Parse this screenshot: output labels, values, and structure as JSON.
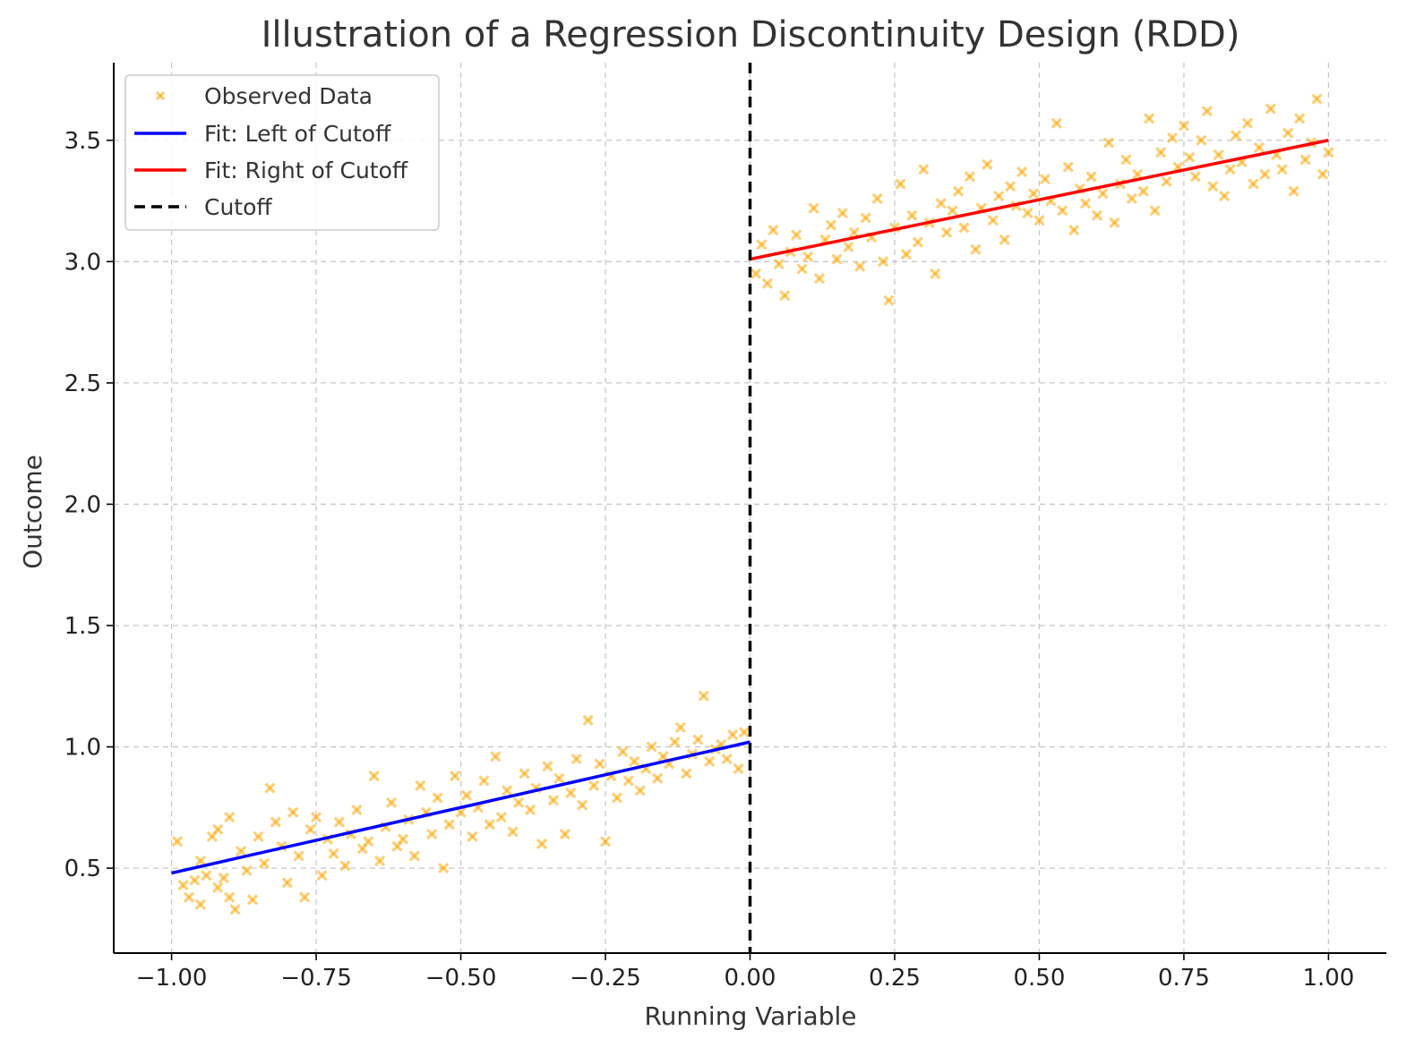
{
  "chart_data": {
    "type": "scatter",
    "title": "Illustration of a Regression Discontinuity Design (RDD)",
    "xlabel": "Running Variable",
    "ylabel": "Outcome",
    "xlim": [
      -1.1,
      1.1
    ],
    "ylim": [
      0.15,
      3.82
    ],
    "xticks": [
      -1.0,
      -0.75,
      -0.5,
      -0.25,
      0.0,
      0.25,
      0.5,
      0.75,
      1.0
    ],
    "xtick_labels": [
      "−1.00",
      "−0.75",
      "−0.50",
      "−0.25",
      "0.00",
      "0.25",
      "0.50",
      "0.75",
      "1.00"
    ],
    "yticks": [
      0.5,
      1.0,
      1.5,
      2.0,
      2.5,
      3.0,
      3.5
    ],
    "ytick_labels": [
      "0.5",
      "1.0",
      "1.5",
      "2.0",
      "2.5",
      "3.0",
      "3.5"
    ],
    "grid": true,
    "legend_position": "top-left",
    "cutoff": 0.0,
    "series": [
      {
        "name": "Observed Data",
        "kind": "scatter",
        "marker": "x",
        "color": "#FFA500",
        "points": [
          [
            -0.99,
            0.61
          ],
          [
            -0.98,
            0.43
          ],
          [
            -0.97,
            0.38
          ],
          [
            -0.96,
            0.45
          ],
          [
            -0.95,
            0.53
          ],
          [
            -0.95,
            0.35
          ],
          [
            -0.94,
            0.47
          ],
          [
            -0.93,
            0.63
          ],
          [
            -0.92,
            0.42
          ],
          [
            -0.92,
            0.66
          ],
          [
            -0.91,
            0.46
          ],
          [
            -0.9,
            0.38
          ],
          [
            -0.9,
            0.71
          ],
          [
            -0.89,
            0.33
          ],
          [
            -0.88,
            0.57
          ],
          [
            -0.87,
            0.49
          ],
          [
            -0.86,
            0.37
          ],
          [
            -0.85,
            0.63
          ],
          [
            -0.84,
            0.52
          ],
          [
            -0.83,
            0.83
          ],
          [
            -0.82,
            0.69
          ],
          [
            -0.81,
            0.59
          ],
          [
            -0.8,
            0.44
          ],
          [
            -0.79,
            0.73
          ],
          [
            -0.78,
            0.55
          ],
          [
            -0.77,
            0.38
          ],
          [
            -0.76,
            0.66
          ],
          [
            -0.75,
            0.71
          ],
          [
            -0.74,
            0.47
          ],
          [
            -0.73,
            0.62
          ],
          [
            -0.72,
            0.56
          ],
          [
            -0.71,
            0.69
          ],
          [
            -0.7,
            0.51
          ],
          [
            -0.69,
            0.64
          ],
          [
            -0.68,
            0.74
          ],
          [
            -0.67,
            0.58
          ],
          [
            -0.66,
            0.61
          ],
          [
            -0.65,
            0.88
          ],
          [
            -0.64,
            0.53
          ],
          [
            -0.63,
            0.67
          ],
          [
            -0.62,
            0.77
          ],
          [
            -0.61,
            0.59
          ],
          [
            -0.6,
            0.62
          ],
          [
            -0.59,
            0.7
          ],
          [
            -0.58,
            0.55
          ],
          [
            -0.57,
            0.84
          ],
          [
            -0.56,
            0.73
          ],
          [
            -0.55,
            0.64
          ],
          [
            -0.54,
            0.79
          ],
          [
            -0.53,
            0.5
          ],
          [
            -0.52,
            0.68
          ],
          [
            -0.51,
            0.88
          ],
          [
            -0.5,
            0.73
          ],
          [
            -0.49,
            0.8
          ],
          [
            -0.48,
            0.63
          ],
          [
            -0.47,
            0.75
          ],
          [
            -0.46,
            0.86
          ],
          [
            -0.45,
            0.68
          ],
          [
            -0.44,
            0.96
          ],
          [
            -0.43,
            0.71
          ],
          [
            -0.42,
            0.82
          ],
          [
            -0.41,
            0.65
          ],
          [
            -0.4,
            0.77
          ],
          [
            -0.39,
            0.89
          ],
          [
            -0.38,
            0.74
          ],
          [
            -0.37,
            0.83
          ],
          [
            -0.36,
            0.6
          ],
          [
            -0.35,
            0.92
          ],
          [
            -0.34,
            0.78
          ],
          [
            -0.33,
            0.87
          ],
          [
            -0.32,
            0.64
          ],
          [
            -0.31,
            0.81
          ],
          [
            -0.3,
            0.95
          ],
          [
            -0.29,
            0.76
          ],
          [
            -0.28,
            1.11
          ],
          [
            -0.27,
            0.84
          ],
          [
            -0.26,
            0.93
          ],
          [
            -0.25,
            0.61
          ],
          [
            -0.24,
            0.88
          ],
          [
            -0.23,
            0.79
          ],
          [
            -0.22,
            0.98
          ],
          [
            -0.21,
            0.86
          ],
          [
            -0.2,
            0.94
          ],
          [
            -0.19,
            0.82
          ],
          [
            -0.18,
            0.91
          ],
          [
            -0.17,
            1.0
          ],
          [
            -0.16,
            0.87
          ],
          [
            -0.15,
            0.96
          ],
          [
            -0.14,
            0.93
          ],
          [
            -0.13,
            1.02
          ],
          [
            -0.12,
            1.08
          ],
          [
            -0.11,
            0.89
          ],
          [
            -0.1,
            0.97
          ],
          [
            -0.09,
            1.03
          ],
          [
            -0.08,
            1.21
          ],
          [
            -0.07,
            0.94
          ],
          [
            -0.06,
            0.99
          ],
          [
            -0.05,
            1.01
          ],
          [
            -0.04,
            0.95
          ],
          [
            -0.03,
            1.05
          ],
          [
            -0.02,
            0.91
          ],
          [
            -0.01,
            1.06
          ],
          [
            0.01,
            2.95
          ],
          [
            0.02,
            3.07
          ],
          [
            0.03,
            2.91
          ],
          [
            0.04,
            3.13
          ],
          [
            0.05,
            2.99
          ],
          [
            0.06,
            2.86
          ],
          [
            0.07,
            3.04
          ],
          [
            0.08,
            3.11
          ],
          [
            0.09,
            2.97
          ],
          [
            0.1,
            3.02
          ],
          [
            0.11,
            3.22
          ],
          [
            0.12,
            2.93
          ],
          [
            0.13,
            3.09
          ],
          [
            0.14,
            3.15
          ],
          [
            0.15,
            3.01
          ],
          [
            0.16,
            3.2
          ],
          [
            0.17,
            3.06
          ],
          [
            0.18,
            3.12
          ],
          [
            0.19,
            2.98
          ],
          [
            0.2,
            3.18
          ],
          [
            0.21,
            3.1
          ],
          [
            0.22,
            3.26
          ],
          [
            0.23,
            3.0
          ],
          [
            0.24,
            2.84
          ],
          [
            0.25,
            3.14
          ],
          [
            0.26,
            3.32
          ],
          [
            0.27,
            3.03
          ],
          [
            0.28,
            3.19
          ],
          [
            0.29,
            3.08
          ],
          [
            0.3,
            3.38
          ],
          [
            0.31,
            3.16
          ],
          [
            0.32,
            2.95
          ],
          [
            0.33,
            3.24
          ],
          [
            0.34,
            3.12
          ],
          [
            0.35,
            3.21
          ],
          [
            0.36,
            3.29
          ],
          [
            0.37,
            3.14
          ],
          [
            0.38,
            3.35
          ],
          [
            0.39,
            3.05
          ],
          [
            0.4,
            3.22
          ],
          [
            0.41,
            3.4
          ],
          [
            0.42,
            3.17
          ],
          [
            0.43,
            3.27
          ],
          [
            0.44,
            3.09
          ],
          [
            0.45,
            3.31
          ],
          [
            0.46,
            3.23
          ],
          [
            0.47,
            3.37
          ],
          [
            0.48,
            3.2
          ],
          [
            0.49,
            3.28
          ],
          [
            0.5,
            3.17
          ],
          [
            0.51,
            3.34
          ],
          [
            0.52,
            3.25
          ],
          [
            0.53,
            3.57
          ],
          [
            0.54,
            3.21
          ],
          [
            0.55,
            3.39
          ],
          [
            0.56,
            3.13
          ],
          [
            0.57,
            3.3
          ],
          [
            0.58,
            3.24
          ],
          [
            0.59,
            3.35
          ],
          [
            0.6,
            3.19
          ],
          [
            0.61,
            3.28
          ],
          [
            0.62,
            3.49
          ],
          [
            0.63,
            3.16
          ],
          [
            0.64,
            3.32
          ],
          [
            0.65,
            3.42
          ],
          [
            0.66,
            3.26
          ],
          [
            0.67,
            3.36
          ],
          [
            0.68,
            3.29
          ],
          [
            0.69,
            3.59
          ],
          [
            0.7,
            3.21
          ],
          [
            0.71,
            3.45
          ],
          [
            0.72,
            3.33
          ],
          [
            0.73,
            3.51
          ],
          [
            0.74,
            3.39
          ],
          [
            0.75,
            3.56
          ],
          [
            0.76,
            3.43
          ],
          [
            0.77,
            3.35
          ],
          [
            0.78,
            3.5
          ],
          [
            0.79,
            3.62
          ],
          [
            0.8,
            3.31
          ],
          [
            0.81,
            3.44
          ],
          [
            0.82,
            3.27
          ],
          [
            0.83,
            3.38
          ],
          [
            0.84,
            3.52
          ],
          [
            0.85,
            3.41
          ],
          [
            0.86,
            3.57
          ],
          [
            0.87,
            3.32
          ],
          [
            0.88,
            3.47
          ],
          [
            0.89,
            3.36
          ],
          [
            0.9,
            3.63
          ],
          [
            0.91,
            3.44
          ],
          [
            0.92,
            3.38
          ],
          [
            0.93,
            3.53
          ],
          [
            0.94,
            3.29
          ],
          [
            0.95,
            3.59
          ],
          [
            0.96,
            3.42
          ],
          [
            0.97,
            3.49
          ],
          [
            0.98,
            3.67
          ],
          [
            0.99,
            3.36
          ],
          [
            1.0,
            3.45
          ]
        ]
      },
      {
        "name": "Fit: Left of Cutoff",
        "kind": "line",
        "color": "#0000FF",
        "x": [
          -1.0,
          0.0
        ],
        "y": [
          0.48,
          1.02
        ]
      },
      {
        "name": "Fit: Right of Cutoff",
        "kind": "line",
        "color": "#FF0000",
        "x": [
          0.0,
          1.0
        ],
        "y": [
          3.01,
          3.5
        ]
      },
      {
        "name": "Cutoff",
        "kind": "vline",
        "color": "#000000",
        "linestyle": "dashed",
        "x": 0.0
      }
    ]
  }
}
